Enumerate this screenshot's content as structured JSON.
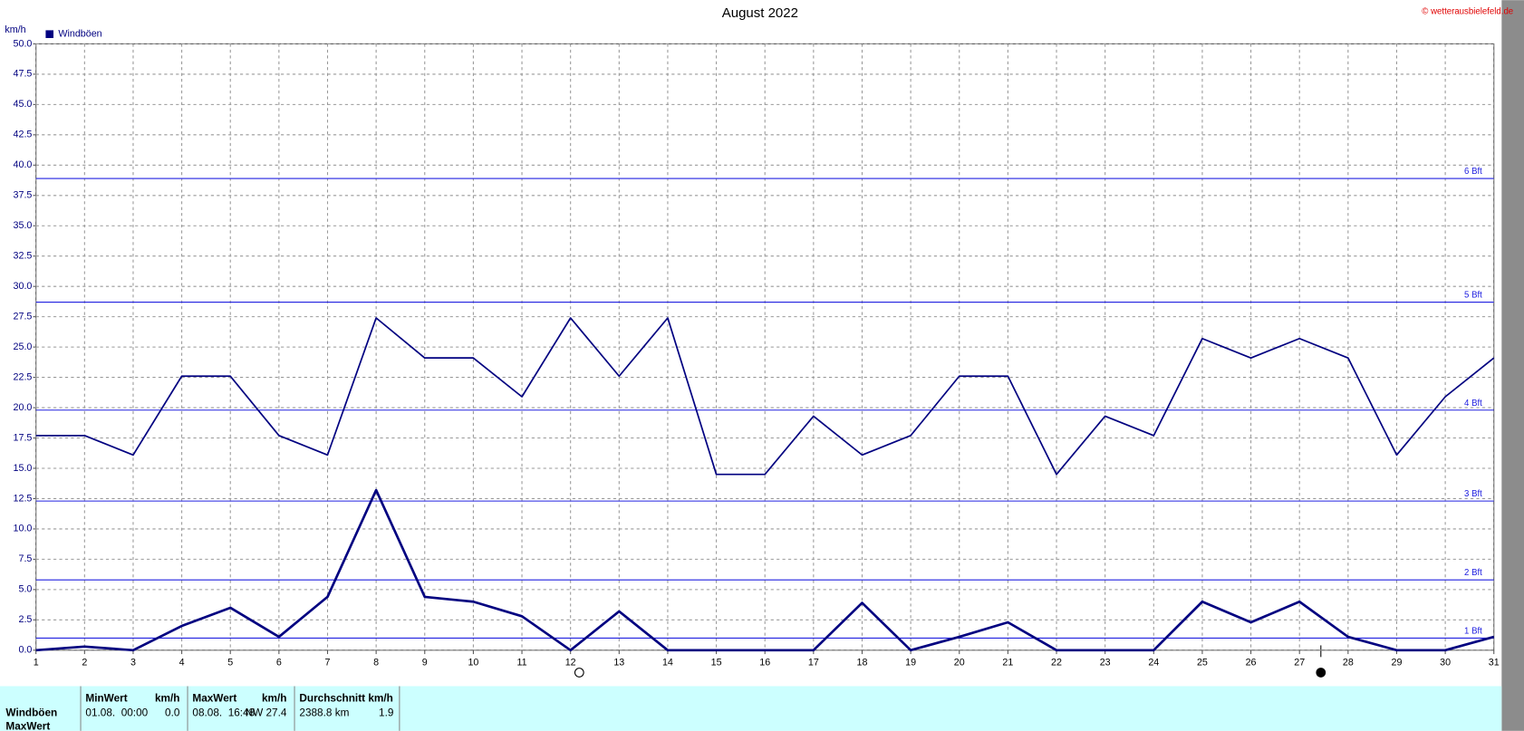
{
  "chart_data": {
    "type": "line",
    "title": "August 2022",
    "source": "© wetterausbielefeld.de",
    "y_label": "km/h",
    "legend": "top-left",
    "grid": true,
    "x": [
      1,
      2,
      3,
      4,
      5,
      6,
      7,
      8,
      9,
      10,
      11,
      12,
      13,
      14,
      15,
      16,
      17,
      18,
      19,
      20,
      21,
      22,
      23,
      24,
      25,
      26,
      27,
      28,
      29,
      30,
      31
    ],
    "xlim": [
      1,
      31
    ],
    "xticks": [
      1,
      2,
      3,
      4,
      5,
      6,
      7,
      8,
      9,
      10,
      11,
      12,
      13,
      14,
      15,
      16,
      17,
      18,
      19,
      20,
      21,
      22,
      23,
      24,
      25,
      26,
      27,
      28,
      29,
      30,
      31
    ],
    "ylim": [
      0,
      50
    ],
    "yticks": [
      {
        "value": 0,
        "label": "0.0"
      },
      {
        "value": 2.5,
        "label": "2.5"
      },
      {
        "value": 5,
        "label": "5.0"
      },
      {
        "value": 7.5,
        "label": "7.5"
      },
      {
        "value": 10,
        "label": "10.0"
      },
      {
        "value": 12.5,
        "label": "12.5"
      },
      {
        "value": 15,
        "label": "15.0"
      },
      {
        "value": 17.5,
        "label": "17.5"
      },
      {
        "value": 20,
        "label": "20.0"
      },
      {
        "value": 22.5,
        "label": "22.5"
      },
      {
        "value": 25,
        "label": "25.0"
      },
      {
        "value": 27.5,
        "label": "27.5"
      },
      {
        "value": 30,
        "label": "30.0"
      },
      {
        "value": 32.5,
        "label": "32.5"
      },
      {
        "value": 35,
        "label": "35.0"
      },
      {
        "value": 37.5,
        "label": "37.5"
      },
      {
        "value": 40,
        "label": "40.0"
      },
      {
        "value": 42.5,
        "label": "42.5"
      },
      {
        "value": 45,
        "label": "45.0"
      },
      {
        "value": 47.5,
        "label": "47.5"
      },
      {
        "value": 50,
        "label": "50.0"
      }
    ],
    "reference_lines": [
      {
        "value": 1.0,
        "label": "1 Bft"
      },
      {
        "value": 5.8,
        "label": "2 Bft"
      },
      {
        "value": 12.3,
        "label": "3 Bft"
      },
      {
        "value": 19.8,
        "label": "4 Bft"
      },
      {
        "value": 28.7,
        "label": "5 Bft"
      },
      {
        "value": 38.9,
        "label": "6 Bft"
      }
    ],
    "reference_color": "#2020e0",
    "series": [
      {
        "name": "Windböen",
        "color": "#000080",
        "values": [
          17.7,
          17.7,
          16.1,
          22.6,
          22.6,
          17.7,
          16.1,
          27.4,
          24.1,
          24.1,
          20.9,
          27.4,
          22.6,
          27.4,
          14.5,
          14.5,
          19.3,
          16.1,
          17.7,
          22.6,
          22.6,
          14.5,
          19.3,
          17.7,
          25.7,
          24.1,
          25.7,
          24.1,
          16.1,
          20.9,
          24.1
        ]
      },
      {
        "color": "#000080",
        "values": [
          0,
          0.3,
          0,
          2.0,
          3.5,
          1.1,
          4.4,
          13.2,
          4.4,
          4.0,
          2.8,
          0,
          3.2,
          0,
          0,
          0,
          0,
          3.9,
          0,
          1.1,
          2.3,
          0,
          0,
          0,
          4.0,
          2.3,
          4.0,
          1.1,
          0,
          0,
          1.1
        ]
      }
    ]
  },
  "stats_table": {
    "header": [
      "MinWert",
      "km/h",
      "MaxWert",
      "km/h",
      "Durchschnitt km/h"
    ],
    "rows": [
      [
        "Windböen",
        "01.08.  00:00",
        "0.0",
        "08.08.  16:48",
        "NW 27.4",
        "2388.8 km",
        "1.9"
      ],
      [
        "MaxWert"
      ]
    ]
  }
}
